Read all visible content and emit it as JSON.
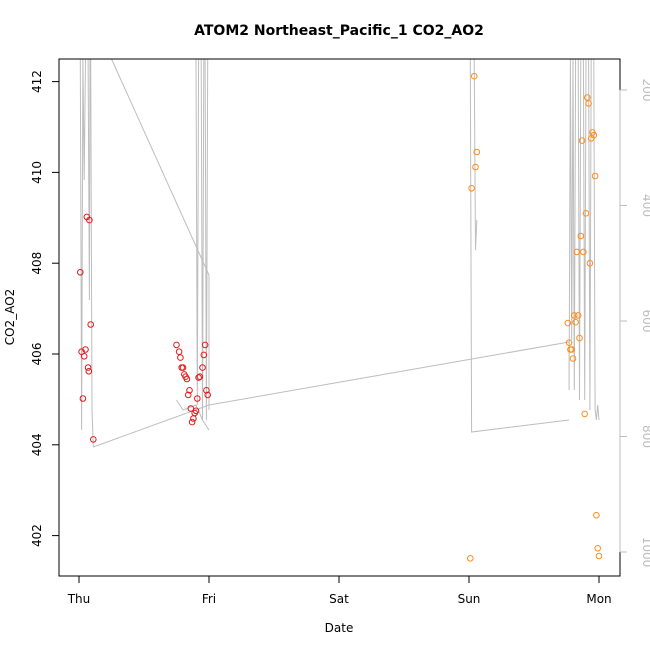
{
  "chart_data": {
    "type": "scatter",
    "title": "ATOM2 Northeast_Pacific_1 CO2_AO2",
    "xlabel": "Date",
    "ylabel": "CO2_AO2",
    "x_ticks": [
      "Thu",
      "Fri",
      "Sat",
      "Sun",
      "Mon"
    ],
    "ylim": [
      400.8,
      412.5
    ],
    "y_ticks": [
      402,
      404,
      406,
      408,
      410,
      412
    ],
    "y2_ticks": [
      200,
      400,
      600,
      800,
      1000
    ],
    "y2_note": "right axis increases downward",
    "colors": {
      "series1": "#e41a1c",
      "series2": "#ff8c1a",
      "trace": "#bdbdbd",
      "axis": "#000000",
      "right_axis": "#bdbdbd"
    },
    "series": [
      {
        "color": "#e41a1c",
        "x": [
          0.01,
          0.02,
          0.03,
          0.04,
          0.05,
          0.06,
          0.07,
          0.075,
          0.08,
          0.09,
          0.11
        ],
        "y": [
          407.8,
          406.05,
          405.02,
          405.95,
          406.1,
          409.02,
          405.7,
          405.62,
          408.95,
          406.65,
          404.12
        ]
      },
      {
        "color": "#e41a1c",
        "x": [
          0.75,
          0.77,
          0.78,
          0.79,
          0.8,
          0.81,
          0.82,
          0.83,
          0.84,
          0.85,
          0.86,
          0.87,
          0.88,
          0.89,
          0.9,
          0.91,
          0.92,
          0.93,
          0.95,
          0.96,
          0.97,
          0.98,
          0.99
        ],
        "y": [
          406.2,
          406.05,
          405.92,
          405.7,
          405.7,
          405.55,
          405.5,
          405.45,
          405.1,
          405.2,
          404.8,
          404.5,
          404.58,
          404.7,
          404.75,
          405.02,
          405.48,
          405.5,
          405.7,
          405.98,
          406.2,
          405.2,
          405.1
        ]
      },
      {
        "color": "#ff8c1a",
        "x": [
          3.01,
          3.02,
          3.04,
          3.05,
          3.06
        ],
        "y": [
          401.5,
          409.65,
          412.12,
          410.12,
          410.45
        ]
      },
      {
        "color": "#ff8c1a",
        "x": [
          3.76,
          3.77,
          3.78,
          3.79,
          3.8,
          3.81,
          3.82,
          3.83,
          3.84,
          3.85,
          3.86,
          3.87,
          3.88,
          3.89,
          3.9,
          3.91,
          3.92,
          3.93,
          3.94,
          3.95,
          3.96,
          3.97,
          3.98,
          3.99,
          4.0
        ],
        "y": [
          406.68,
          406.25,
          406.1,
          406.1,
          405.9,
          406.85,
          406.7,
          408.25,
          406.85,
          406.35,
          408.6,
          410.7,
          408.25,
          404.68,
          409.1,
          411.65,
          411.52,
          408.0,
          410.75,
          410.88,
          410.82,
          409.92,
          402.45,
          401.72,
          401.55
        ]
      }
    ]
  }
}
